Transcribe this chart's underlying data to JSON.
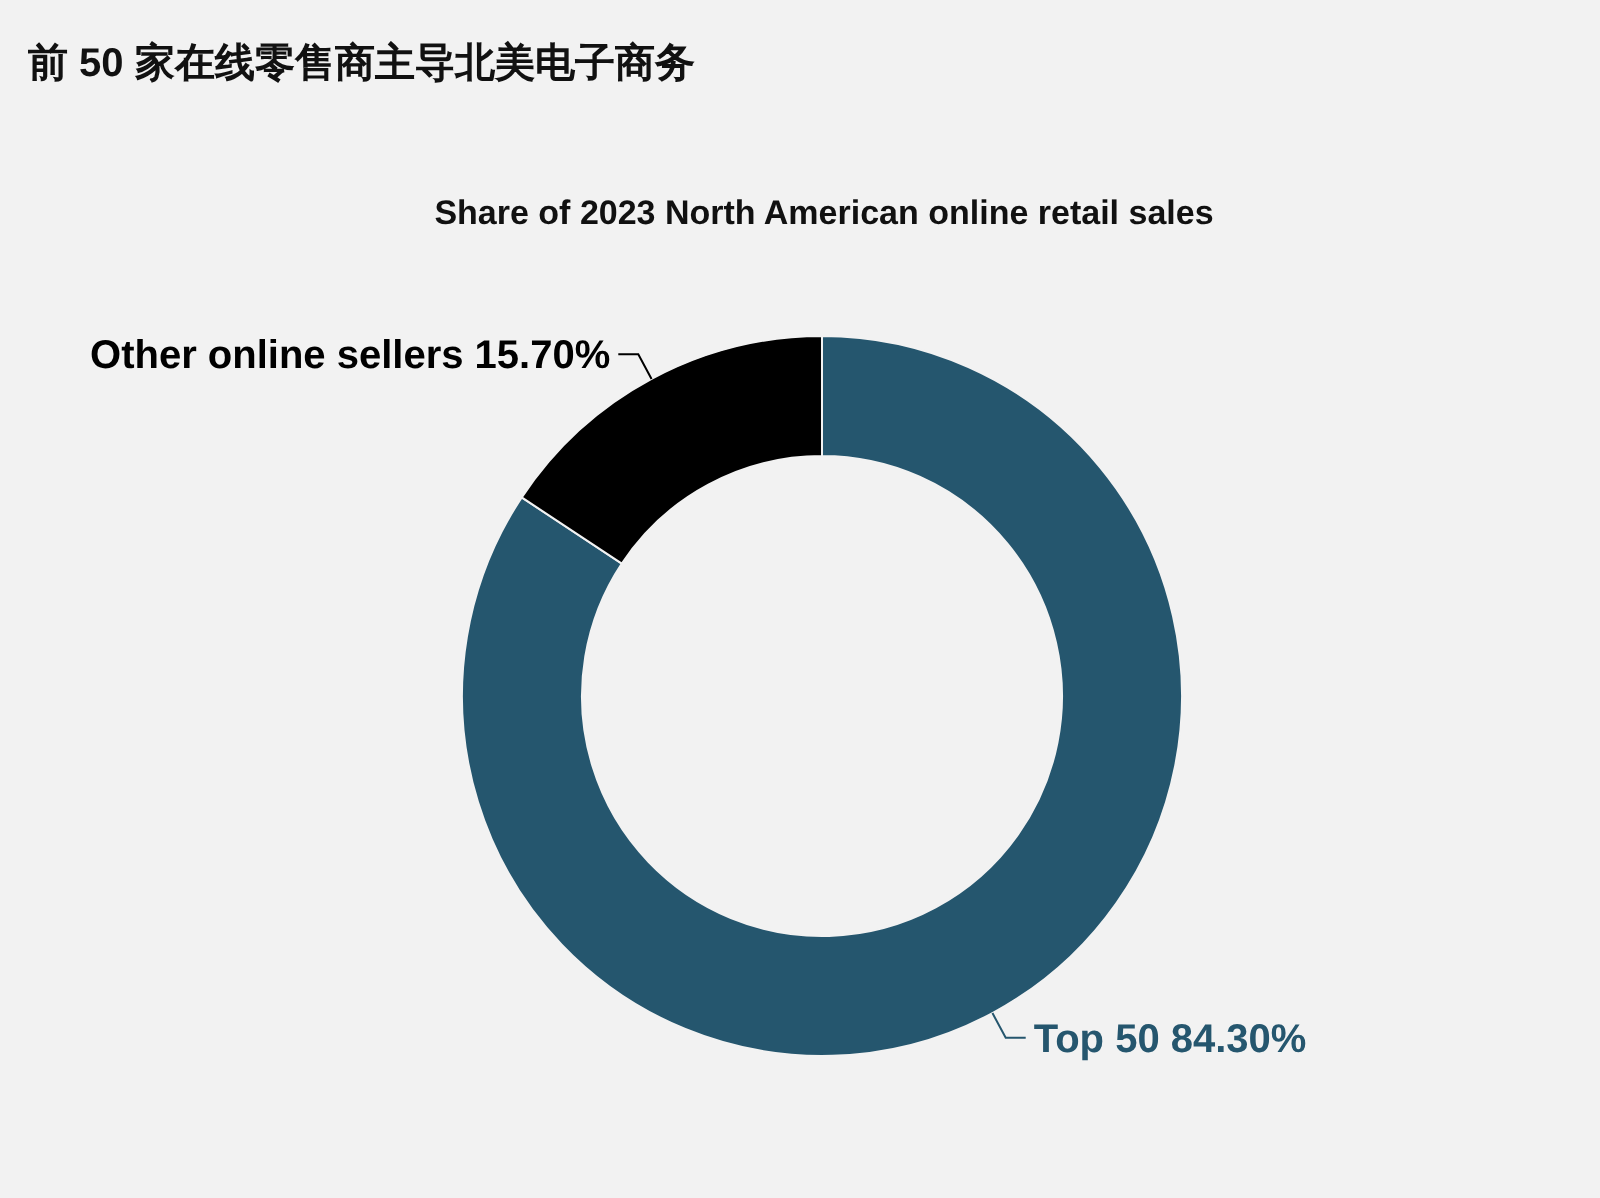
{
  "chart_data": {
    "type": "donut",
    "title": "前 50 家在线零售商主导北美电子商务",
    "subtitle": "Share of 2023 North American online retail sales",
    "categories": [
      "Top 50",
      "Other online sellers"
    ],
    "values": [
      84.3,
      15.7
    ],
    "value_labels": [
      "84.30%",
      "15.70%"
    ],
    "colors": [
      "#25566e",
      "#000000"
    ]
  }
}
